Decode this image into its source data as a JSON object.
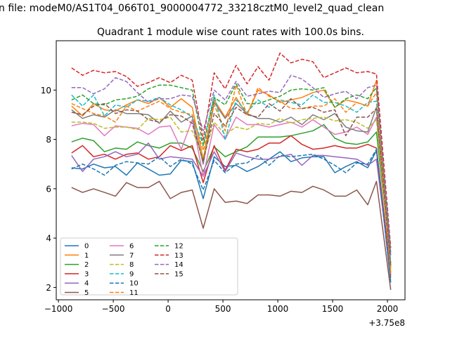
{
  "chart_data": {
    "type": "line",
    "suptitle": "n file: modeM0/AS1T04_066T01_9000004772_33218cztM0_level2_quad_clean",
    "title": "Quadrant 1 module wise count rates with 100.0s bins.",
    "xlabel": "",
    "ylabel": "",
    "offset_label": "+3.75e8",
    "xlim": [
      -1020,
      2160
    ],
    "ylim": [
      1.5,
      12.0
    ],
    "xticks": [
      -1000,
      -500,
      0,
      500,
      1000,
      1500,
      2000
    ],
    "xtick_labels": [
      "−1000",
      "−500",
      "0",
      "500",
      "1000",
      "1500",
      "2000"
    ],
    "yticks": [
      2,
      4,
      6,
      8,
      10
    ],
    "ytick_labels": [
      "2",
      "4",
      "6",
      "8",
      "10"
    ],
    "x": [
      -880,
      -780,
      -680,
      -580,
      -480,
      -380,
      -280,
      -180,
      -80,
      20,
      120,
      220,
      320,
      420,
      520,
      620,
      720,
      820,
      920,
      1020,
      1120,
      1220,
      1320,
      1420,
      1520,
      1620,
      1720,
      1820,
      1900,
      2030
    ],
    "series": [
      {
        "name": "0",
        "color": "#1f77b4",
        "dash": "solid",
        "values": [
          6.85,
          6.8,
          7.0,
          6.85,
          6.9,
          6.55,
          7.05,
          6.8,
          6.55,
          6.6,
          7.15,
          7.1,
          5.6,
          7.3,
          6.9,
          6.95,
          6.7,
          6.9,
          7.2,
          7.5,
          7.1,
          7.25,
          7.3,
          7.3,
          6.65,
          6.9,
          7.1,
          6.85,
          7.55,
          2.2
        ]
      },
      {
        "name": "1",
        "color": "#ff7f0e",
        "dash": "solid",
        "values": [
          9.35,
          8.95,
          9.45,
          9.2,
          9.15,
          9.4,
          9.6,
          9.45,
          9.7,
          9.3,
          9.65,
          9.3,
          7.2,
          9.6,
          8.9,
          9.7,
          9.0,
          10.0,
          9.8,
          9.5,
          9.6,
          9.7,
          9.9,
          10.0,
          9.3,
          9.6,
          9.5,
          9.35,
          10.4,
          2.4
        ]
      },
      {
        "name": "2",
        "color": "#2ca02c",
        "dash": "solid",
        "values": [
          7.9,
          8.05,
          7.95,
          7.5,
          7.65,
          7.6,
          7.9,
          7.75,
          7.65,
          7.85,
          7.85,
          7.65,
          6.7,
          7.7,
          7.3,
          7.5,
          7.7,
          8.1,
          8.1,
          8.1,
          8.15,
          8.25,
          8.35,
          8.6,
          8.05,
          7.85,
          7.8,
          7.9,
          8.3,
          3.0
        ]
      },
      {
        "name": "3",
        "color": "#d62728",
        "dash": "solid",
        "values": [
          7.45,
          7.75,
          7.3,
          7.4,
          7.2,
          7.4,
          7.45,
          7.2,
          7.3,
          7.75,
          7.55,
          7.75,
          6.25,
          7.75,
          6.75,
          7.6,
          7.5,
          7.6,
          7.85,
          7.85,
          8.15,
          7.8,
          7.6,
          7.65,
          7.75,
          7.65,
          7.65,
          7.8,
          7.65,
          2.6
        ]
      },
      {
        "name": "4",
        "color": "#9467bd",
        "dash": "solid",
        "values": [
          7.35,
          6.7,
          7.2,
          7.3,
          7.5,
          7.3,
          7.4,
          7.85,
          7.2,
          7.3,
          7.25,
          7.2,
          6.5,
          7.5,
          6.7,
          7.45,
          7.3,
          7.2,
          7.2,
          7.3,
          7.4,
          6.95,
          7.35,
          7.35,
          7.3,
          7.25,
          7.2,
          6.95,
          7.2,
          2.5
        ]
      },
      {
        "name": "5",
        "color": "#8c564b",
        "dash": "solid",
        "values": [
          6.05,
          5.85,
          6.0,
          5.85,
          5.7,
          6.25,
          6.05,
          6.05,
          6.3,
          5.6,
          5.85,
          5.95,
          4.4,
          6.0,
          5.45,
          5.5,
          5.4,
          5.75,
          5.75,
          5.7,
          5.9,
          5.85,
          6.1,
          5.95,
          5.7,
          5.7,
          5.95,
          5.35,
          6.3,
          1.9
        ]
      },
      {
        "name": "6",
        "color": "#e377c2",
        "dash": "solid",
        "values": [
          8.55,
          8.65,
          8.6,
          8.15,
          8.55,
          8.5,
          8.45,
          8.2,
          8.5,
          8.55,
          7.6,
          8.8,
          6.5,
          8.6,
          8.0,
          8.9,
          8.6,
          8.6,
          8.5,
          8.6,
          8.7,
          8.5,
          8.8,
          8.5,
          8.2,
          8.3,
          8.5,
          8.2,
          8.9,
          2.8
        ]
      },
      {
        "name": "7",
        "color": "#7f7f7f",
        "dash": "solid",
        "values": [
          9.2,
          8.85,
          9.0,
          8.9,
          9.2,
          9.05,
          9.05,
          9.0,
          8.65,
          9.15,
          8.7,
          8.95,
          7.0,
          9.5,
          8.85,
          9.45,
          9.05,
          8.85,
          8.85,
          8.7,
          8.9,
          8.6,
          9.0,
          8.8,
          9.05,
          8.5,
          8.35,
          8.3,
          9.3,
          2.8
        ]
      },
      {
        "name": "8",
        "color": "#bcbd22",
        "dash": "dashed",
        "values": [
          8.7,
          8.7,
          8.65,
          8.45,
          8.5,
          8.5,
          8.4,
          8.85,
          8.8,
          8.9,
          8.3,
          8.35,
          7.3,
          8.7,
          8.2,
          8.5,
          8.4,
          8.65,
          8.6,
          8.85,
          8.65,
          8.8,
          8.85,
          8.9,
          8.75,
          8.8,
          8.7,
          8.45,
          8.8,
          2.7
        ]
      },
      {
        "name": "9",
        "color": "#17becf",
        "dash": "dashed",
        "values": [
          9.8,
          9.35,
          9.8,
          8.95,
          9.4,
          9.3,
          9.6,
          9.55,
          9.7,
          9.4,
          9.2,
          8.9,
          7.8,
          9.8,
          8.0,
          9.6,
          9.1,
          9.6,
          9.3,
          9.6,
          9.5,
          9.4,
          9.8,
          9.5,
          9.5,
          9.35,
          9.1,
          9.5,
          9.55,
          2.9
        ]
      },
      {
        "name": "10",
        "color": "#1f77b4",
        "dash": "dashed",
        "values": [
          6.8,
          7.0,
          6.8,
          6.55,
          6.95,
          7.1,
          7.05,
          7.0,
          7.3,
          6.9,
          7.2,
          7.0,
          5.95,
          7.15,
          6.65,
          7.0,
          7.05,
          7.35,
          6.95,
          7.35,
          7.3,
          7.35,
          7.4,
          7.2,
          6.95,
          6.65,
          7.05,
          7.0,
          7.6,
          2.3
        ]
      },
      {
        "name": "11",
        "color": "#ff7f0e",
        "dash": "dashed",
        "values": [
          9.45,
          9.25,
          9.05,
          8.95,
          8.7,
          9.35,
          9.15,
          9.35,
          9.55,
          9.25,
          9.1,
          9.0,
          7.55,
          9.4,
          8.35,
          10.2,
          9.0,
          10.1,
          9.75,
          9.55,
          9.25,
          9.25,
          9.35,
          9.35,
          9.65,
          9.1,
          9.5,
          9.35,
          9.9,
          2.5
        ]
      },
      {
        "name": "12",
        "color": "#2ca02c",
        "dash": "dashed",
        "values": [
          9.6,
          9.8,
          9.45,
          9.4,
          9.6,
          9.65,
          9.75,
          10.05,
          10.2,
          10.2,
          10.1,
          10.0,
          7.75,
          9.7,
          9.4,
          10.25,
          9.45,
          9.45,
          9.6,
          9.75,
          10.0,
          10.05,
          10.0,
          10.1,
          9.3,
          9.65,
          9.8,
          9.65,
          10.1,
          3.4
        ]
      },
      {
        "name": "13",
        "color": "#d62728",
        "dash": "dashed",
        "values": [
          10.9,
          10.6,
          10.8,
          10.7,
          10.75,
          10.55,
          10.15,
          10.3,
          10.5,
          10.3,
          10.6,
          10.4,
          8.0,
          10.7,
          10.05,
          11.0,
          10.25,
          10.95,
          10.4,
          11.5,
          11.1,
          11.25,
          11.15,
          10.5,
          10.7,
          10.9,
          10.7,
          10.75,
          10.65,
          3.6
        ]
      },
      {
        "name": "14",
        "color": "#9467bd",
        "dash": "dashed",
        "values": [
          10.1,
          10.1,
          9.85,
          10.05,
          10.5,
          10.35,
          9.9,
          9.5,
          9.65,
          9.65,
          9.8,
          9.75,
          8.35,
          10.0,
          9.6,
          10.35,
          9.75,
          9.85,
          9.95,
          9.9,
          10.6,
          10.45,
          10.1,
          9.7,
          9.85,
          9.95,
          9.65,
          10.1,
          10.2,
          3.3
        ]
      },
      {
        "name": "15",
        "color": "#8c564b",
        "dash": "dashed",
        "values": [
          9.1,
          9.0,
          9.35,
          9.45,
          9.05,
          9.2,
          9.15,
          8.8,
          8.7,
          9.0,
          8.95,
          8.65,
          7.1,
          9.05,
          8.55,
          9.3,
          9.0,
          8.9,
          9.45,
          9.15,
          9.65,
          9.25,
          9.3,
          9.1,
          9.2,
          8.15,
          8.9,
          8.9,
          9.25,
          2.9
        ]
      }
    ]
  }
}
